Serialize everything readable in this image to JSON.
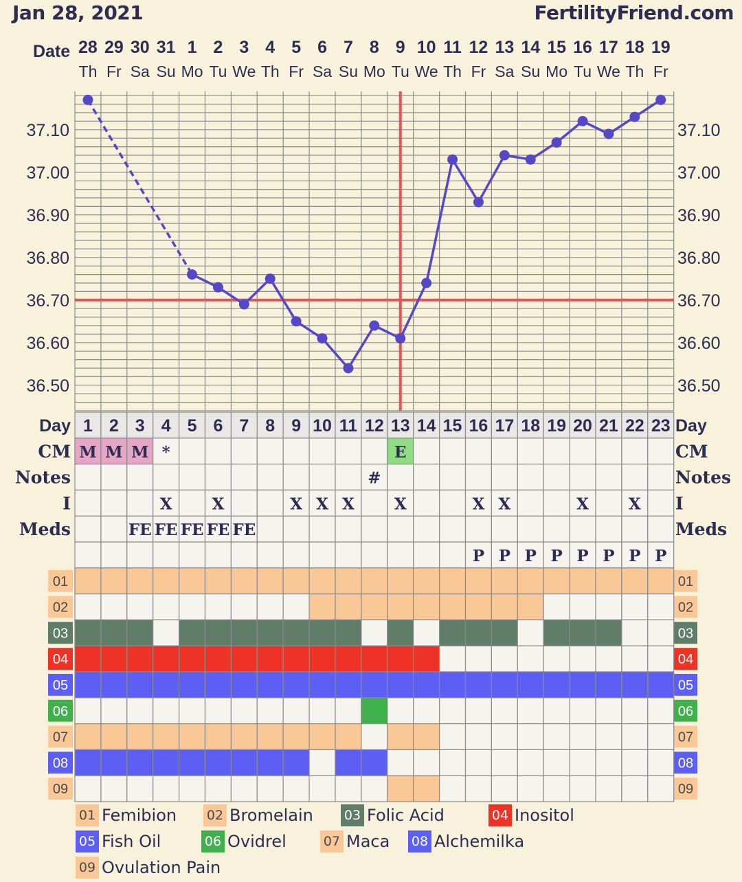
{
  "header": {
    "date": "Jan 28, 2021",
    "brand": "FertilityFriend.com"
  },
  "colors": {
    "background": "#f8f2dd",
    "grid_bg": "#f5f4ef",
    "grid_line": "#8a8a8a",
    "text": "#2f2c52",
    "temp_line": "#5548c6",
    "coverline": "#dc5757",
    "cm_menses": "#e6a6c6",
    "cm_eggwhite": "#8fdc82"
  },
  "chart_data": {
    "type": "line",
    "title": "",
    "xlabel": "Day",
    "ylabel": "",
    "ylim": [
      36.44,
      37.19
    ],
    "y_ticks": [
      "36.50",
      "36.60",
      "36.70",
      "36.80",
      "36.90",
      "37.00",
      "37.10"
    ],
    "date_label": "Date",
    "dates": [
      "28",
      "29",
      "30",
      "31",
      "1",
      "2",
      "3",
      "4",
      "5",
      "6",
      "7",
      "8",
      "9",
      "10",
      "11",
      "12",
      "13",
      "14",
      "15",
      "16",
      "17",
      "18",
      "19"
    ],
    "weekdays": [
      "Th",
      "Fr",
      "Sa",
      "Su",
      "Mo",
      "Tu",
      "We",
      "Th",
      "Fr",
      "Sa",
      "Su",
      "Mo",
      "Tu",
      "We",
      "Th",
      "Fr",
      "Sa",
      "Su",
      "Mo",
      "Tu",
      "We",
      "Th",
      "Fr"
    ],
    "days": [
      "1",
      "2",
      "3",
      "4",
      "5",
      "6",
      "7",
      "8",
      "9",
      "10",
      "11",
      "12",
      "13",
      "14",
      "15",
      "16",
      "17",
      "18",
      "19",
      "20",
      "21",
      "22",
      "23"
    ],
    "series": [
      {
        "values": [
          37.17,
          null,
          null,
          null,
          36.76,
          36.73,
          36.69,
          36.75,
          36.65,
          36.61,
          36.54,
          36.64,
          36.61,
          36.74,
          37.03,
          36.93,
          37.04,
          37.03,
          37.07,
          37.12,
          37.09,
          37.13,
          37.17
        ]
      }
    ],
    "dashed_segment": {
      "from_day": 1,
      "to_day": 5
    },
    "coverline": 36.7,
    "ovulation_day": 13
  },
  "rows": {
    "day_label": "Day",
    "cm_label": "CM",
    "notes_label": "Notes",
    "i_label": "I",
    "meds_label": "Meds",
    "cm": [
      "M",
      "M",
      "M",
      "*",
      "",
      "",
      "",
      "",
      "",
      "",
      "",
      "",
      "E",
      "",
      "",
      "",
      "",
      "",
      "",
      "",
      "",
      "",
      ""
    ],
    "notes": [
      "",
      "",
      "",
      "",
      "",
      "",
      "",
      "",
      "",
      "",
      "",
      "#",
      "",
      "",
      "",
      "",
      "",
      "",
      "",
      "",
      "",
      "",
      ""
    ],
    "intercourse": [
      "",
      "",
      "",
      "X",
      "",
      "X",
      "",
      "",
      "X",
      "X",
      "X",
      "",
      "X",
      "",
      "",
      "X",
      "X",
      "",
      "",
      "X",
      "",
      "X",
      ""
    ],
    "meds": [
      "",
      "",
      "FE",
      "FE",
      "FE",
      "FE",
      "FE",
      "",
      "",
      "",
      "",
      "",
      "",
      "",
      "",
      "",
      "",
      "",
      "",
      "",
      "",
      "",
      ""
    ],
    "meds2": [
      "",
      "",
      "",
      "",
      "",
      "",
      "",
      "",
      "",
      "",
      "",
      "",
      "",
      "",
      "",
      "P",
      "P",
      "P",
      "P",
      "P",
      "P",
      "P",
      "P"
    ]
  },
  "custom_rows": [
    {
      "code": "01",
      "name": "Femibion",
      "color": "#f9c896",
      "days": [
        1,
        1,
        1,
        1,
        1,
        1,
        1,
        1,
        1,
        1,
        1,
        1,
        1,
        1,
        1,
        1,
        1,
        1,
        1,
        1,
        1,
        1,
        1
      ]
    },
    {
      "code": "02",
      "name": "Bromelain",
      "color": "#f9c896",
      "days": [
        0,
        0,
        0,
        0,
        0,
        0,
        0,
        0,
        0,
        1,
        1,
        1,
        1,
        1,
        1,
        1,
        1,
        1,
        0,
        0,
        0,
        0,
        0
      ]
    },
    {
      "code": "03",
      "name": "Folic Acid",
      "color": "#5f7d68",
      "days": [
        1,
        1,
        1,
        0,
        1,
        1,
        1,
        1,
        1,
        1,
        1,
        0,
        1,
        0,
        1,
        1,
        1,
        0,
        1,
        1,
        1,
        0,
        0
      ]
    },
    {
      "code": "04",
      "name": "Inositol",
      "color": "#ee3326",
      "days": [
        1,
        1,
        1,
        1,
        1,
        1,
        1,
        1,
        1,
        1,
        1,
        1,
        1,
        1,
        0,
        0,
        0,
        0,
        0,
        0,
        0,
        0,
        0
      ]
    },
    {
      "code": "05",
      "name": "Fish Oil",
      "color": "#5d5ff4",
      "days": [
        1,
        1,
        1,
        1,
        1,
        1,
        1,
        1,
        1,
        1,
        1,
        1,
        1,
        1,
        1,
        1,
        1,
        1,
        1,
        1,
        1,
        1,
        1
      ]
    },
    {
      "code": "06",
      "name": "Ovidrel",
      "color": "#3fb04c",
      "days": [
        0,
        0,
        0,
        0,
        0,
        0,
        0,
        0,
        0,
        0,
        0,
        1,
        0,
        0,
        0,
        0,
        0,
        0,
        0,
        0,
        0,
        0,
        0
      ]
    },
    {
      "code": "07",
      "name": "Maca",
      "color": "#f9c896",
      "days": [
        1,
        1,
        1,
        1,
        1,
        1,
        1,
        1,
        1,
        1,
        1,
        0,
        1,
        1,
        0,
        0,
        0,
        0,
        0,
        0,
        0,
        0,
        0
      ]
    },
    {
      "code": "08",
      "name": "Alchemilka",
      "color": "#5d5ff4",
      "days": [
        1,
        1,
        1,
        1,
        1,
        1,
        1,
        1,
        1,
        0,
        1,
        1,
        0,
        0,
        0,
        0,
        0,
        0,
        0,
        0,
        0,
        0,
        0
      ]
    },
    {
      "code": "09",
      "name": "Ovulation Pain",
      "color": "#f9c896",
      "days": [
        0,
        0,
        0,
        0,
        0,
        0,
        0,
        0,
        0,
        0,
        0,
        0,
        1,
        1,
        0,
        0,
        0,
        0,
        0,
        0,
        0,
        0,
        0
      ]
    }
  ]
}
